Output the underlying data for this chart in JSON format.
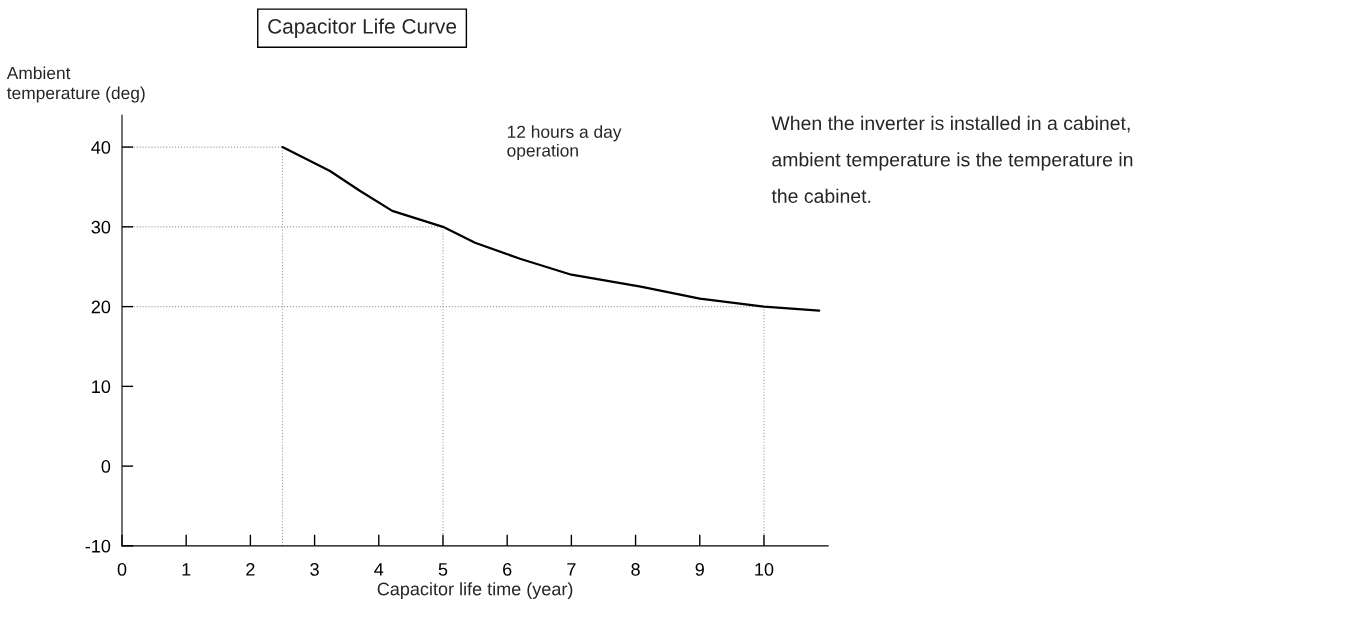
{
  "chart_data": {
    "type": "line",
    "title": "Capacitor Life Curve",
    "xlabel": "Capacitor life time (year)",
    "ylabel": "Ambient\ntemperature (deg)",
    "annotations": [
      "12 hours a day\noperation",
      "When the inverter is installed in a cabinet,\nambient temperature is the temperature in\nthe cabinet."
    ],
    "series": [
      {
        "color": "#000000",
        "x": [
          2.5,
          3.24,
          3.71,
          4.21,
          5.0,
          5.5,
          6.2,
          7.0,
          8.08,
          9.0,
          10.0,
          10.86
        ],
        "values": [
          40,
          37,
          34.5,
          32,
          30,
          28,
          26,
          24,
          22.5,
          21,
          20,
          19.5
        ]
      }
    ],
    "xlim": [
      0,
      11
    ],
    "xticks": [
      0,
      1,
      2,
      3,
      4,
      5,
      6,
      7,
      8,
      9,
      10
    ],
    "ylim": [
      -10,
      44
    ],
    "yticks": [
      -10,
      0,
      10,
      20,
      30,
      40
    ],
    "ref_lines": [
      {
        "axis": "y",
        "value": 40,
        "color": "#a0a0a0",
        "line_style": "dotted"
      },
      {
        "axis": "y",
        "value": 30,
        "color": "#a0a0a0",
        "line_style": "dotted"
      },
      {
        "axis": "y",
        "value": 20,
        "color": "#a0a0a0",
        "line_style": "dotted"
      },
      {
        "axis": "x",
        "value": 2.5,
        "color": "#a0a0a0",
        "line_style": "dotted"
      },
      {
        "axis": "x",
        "value": 5,
        "color": "#a0a0a0",
        "line_style": "dotted"
      },
      {
        "axis": "x",
        "value": 10,
        "color": "#a0a0a0",
        "line_style": "dotted"
      }
    ],
    "grid": false,
    "legend": false,
    "marker": "none",
    "line_style": "solid"
  }
}
